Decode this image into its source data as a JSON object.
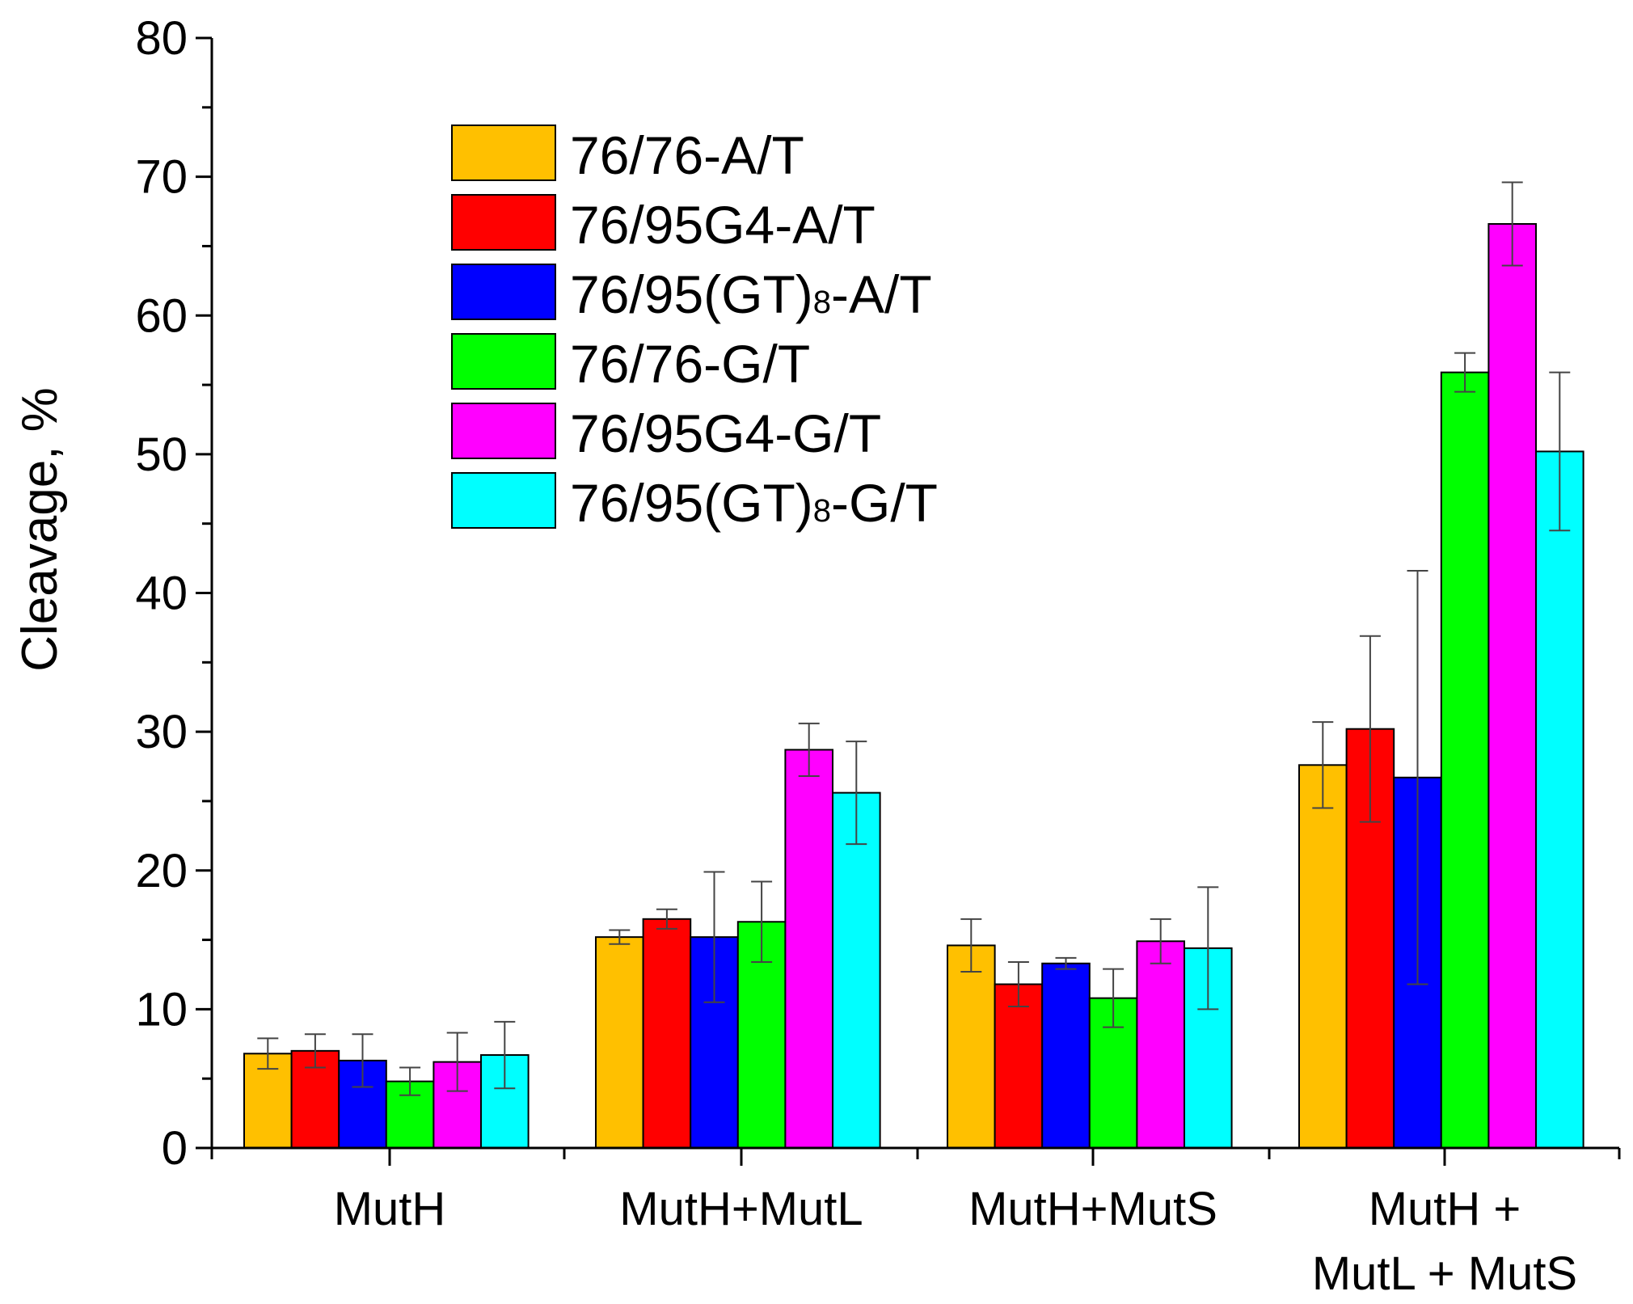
{
  "chart_data": {
    "type": "bar",
    "title": "",
    "xlabel": "",
    "ylabel": "Cleavage, %",
    "ylim": [
      0,
      80
    ],
    "yticks": [
      "0",
      "10",
      "20",
      "30",
      "40",
      "50",
      "60",
      "70",
      "80"
    ],
    "categories": [
      [
        "MutH"
      ],
      [
        "MutH+MutL"
      ],
      [
        "MutH+MutS"
      ],
      [
        "MutH +",
        "MutL + MutS"
      ]
    ],
    "legend_position": "top-left",
    "series": [
      {
        "name": "76/76-A/T",
        "name_parts": [
          "76/76-A/T"
        ],
        "color": "#FFC000",
        "values": [
          6.8,
          15.2,
          14.6,
          27.6
        ],
        "errors": [
          1.1,
          0.5,
          1.9,
          3.1
        ]
      },
      {
        "name": "76/95G4-A/T",
        "name_parts": [
          "76/95G4-A/T"
        ],
        "color": "#FF0000",
        "values": [
          7.0,
          16.5,
          11.8,
          30.2
        ],
        "errors": [
          1.2,
          0.7,
          1.6,
          6.7
        ]
      },
      {
        "name": "76/95(GT)8-A/T",
        "name_parts": [
          "76/95(GT)",
          "8",
          "-A/T"
        ],
        "color": "#0000FF",
        "values": [
          6.3,
          15.2,
          13.3,
          26.7
        ],
        "errors": [
          1.9,
          4.7,
          0.4,
          14.9
        ]
      },
      {
        "name": "76/76-G/T",
        "name_parts": [
          "76/76-G/T"
        ],
        "color": "#00FF00",
        "values": [
          4.8,
          16.3,
          10.8,
          55.9
        ],
        "errors": [
          1.0,
          2.9,
          2.1,
          1.4
        ]
      },
      {
        "name": "76/95G4-G/T",
        "name_parts": [
          "76/95G4-G/T"
        ],
        "color": "#FF00FF",
        "values": [
          6.2,
          28.7,
          14.9,
          66.6
        ],
        "errors": [
          2.1,
          1.9,
          1.6,
          3.0
        ]
      },
      {
        "name": "76/95(GT)8-G/T",
        "name_parts": [
          "76/95(GT)",
          "8",
          "-G/T"
        ],
        "color": "#00FFFF",
        "values": [
          6.7,
          25.6,
          14.4,
          50.2
        ],
        "errors": [
          2.4,
          3.7,
          4.4,
          5.7
        ]
      }
    ]
  }
}
